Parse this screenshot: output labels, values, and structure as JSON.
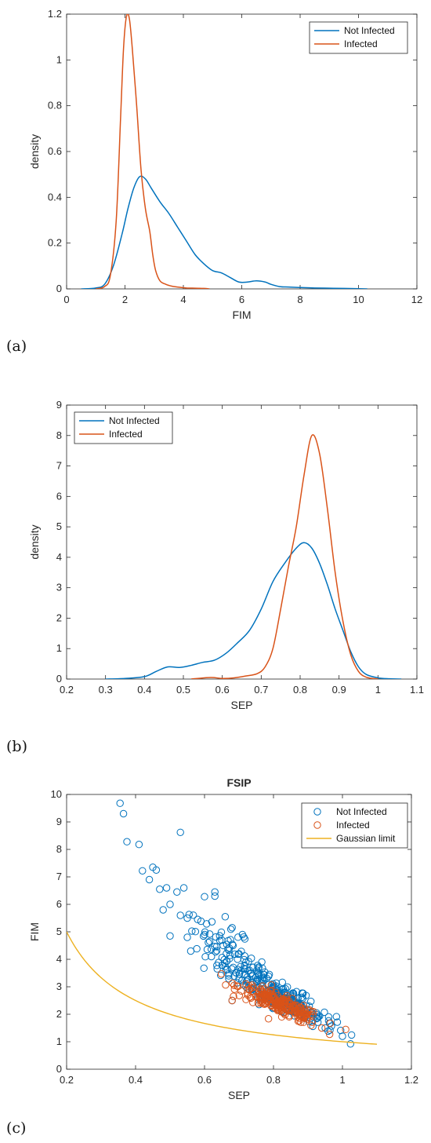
{
  "panel_labels": [
    "(a)",
    "(b)",
    "(c)"
  ],
  "chart_data": [
    {
      "type": "line",
      "title": "",
      "xlabel": "FIM",
      "ylabel": "density",
      "xlim": [
        0,
        12
      ],
      "ylim": [
        0,
        1.2
      ],
      "xticks": [
        0,
        2,
        4,
        6,
        8,
        10,
        12
      ],
      "yticks": [
        0,
        0.2,
        0.4,
        0.6,
        0.8,
        1,
        1.2
      ],
      "xtick_labels": [
        "0",
        "2",
        "4",
        "6",
        "8",
        "10",
        "12"
      ],
      "ytick_labels": [
        "0",
        "0.2",
        "0.4",
        "0.6",
        "0.8",
        "1",
        "1.2"
      ],
      "legend_position": "top-right",
      "series": [
        {
          "name": "Not Infected",
          "color": "#0072BD",
          "x": [
            0.5,
            1.0,
            1.3,
            1.6,
            1.9,
            2.1,
            2.3,
            2.5,
            2.7,
            2.9,
            3.2,
            3.5,
            3.8,
            4.1,
            4.4,
            4.7,
            5.0,
            5.3,
            5.6,
            5.9,
            6.2,
            6.5,
            6.8,
            7.0,
            7.3,
            7.6,
            8.0,
            8.5,
            9.0,
            9.5,
            10.3
          ],
          "y": [
            0,
            0.004,
            0.02,
            0.1,
            0.24,
            0.35,
            0.44,
            0.49,
            0.48,
            0.44,
            0.38,
            0.33,
            0.27,
            0.21,
            0.15,
            0.11,
            0.08,
            0.07,
            0.05,
            0.03,
            0.03,
            0.035,
            0.03,
            0.02,
            0.01,
            0.008,
            0.006,
            0.004,
            0.003,
            0.002,
            0
          ]
        },
        {
          "name": "Infected",
          "color": "#D95319",
          "x": [
            1.0,
            1.3,
            1.5,
            1.7,
            1.85,
            1.95,
            2.05,
            2.15,
            2.25,
            2.4,
            2.55,
            2.7,
            2.85,
            2.95,
            3.05,
            3.2,
            3.4,
            3.6,
            3.8,
            4.1,
            4.4,
            4.7,
            4.9
          ],
          "y": [
            0,
            0.01,
            0.06,
            0.3,
            0.75,
            1.05,
            1.19,
            1.18,
            1.05,
            0.8,
            0.52,
            0.35,
            0.25,
            0.15,
            0.08,
            0.035,
            0.02,
            0.012,
            0.008,
            0.004,
            0.003,
            0.002,
            0
          ]
        }
      ]
    },
    {
      "type": "line",
      "title": "",
      "xlabel": "SEP",
      "ylabel": "density",
      "xlim": [
        0.2,
        1.1
      ],
      "ylim": [
        0,
        9
      ],
      "xticks": [
        0.2,
        0.3,
        0.4,
        0.5,
        0.6,
        0.7,
        0.8,
        0.9,
        1,
        1.1
      ],
      "yticks": [
        0,
        1,
        2,
        3,
        4,
        5,
        6,
        7,
        8,
        9
      ],
      "xtick_labels": [
        "0.2",
        "0.3",
        "0.4",
        "0.5",
        "0.6",
        "0.7",
        "0.8",
        "0.9",
        "1",
        "1.1"
      ],
      "ytick_labels": [
        "0",
        "1",
        "2",
        "3",
        "4",
        "5",
        "6",
        "7",
        "8",
        "9"
      ],
      "legend_position": "top-left",
      "series": [
        {
          "name": "Not Infected",
          "color": "#0072BD",
          "x": [
            0.3,
            0.35,
            0.4,
            0.43,
            0.46,
            0.49,
            0.52,
            0.55,
            0.58,
            0.61,
            0.64,
            0.67,
            0.7,
            0.73,
            0.76,
            0.79,
            0.81,
            0.83,
            0.85,
            0.87,
            0.89,
            0.91,
            0.93,
            0.95,
            0.97,
            1.0,
            1.03,
            1.06
          ],
          "y": [
            0,
            0.02,
            0.08,
            0.25,
            0.4,
            0.38,
            0.45,
            0.55,
            0.62,
            0.85,
            1.2,
            1.6,
            2.3,
            3.2,
            3.8,
            4.3,
            4.48,
            4.3,
            3.8,
            3.1,
            2.3,
            1.6,
            0.9,
            0.4,
            0.15,
            0.04,
            0.01,
            0
          ]
        },
        {
          "name": "Infected",
          "color": "#D95319",
          "x": [
            0.52,
            0.57,
            0.6,
            0.63,
            0.66,
            0.69,
            0.71,
            0.73,
            0.75,
            0.77,
            0.79,
            0.81,
            0.83,
            0.85,
            0.87,
            0.89,
            0.91,
            0.93,
            0.95,
            0.97,
            1.0
          ],
          "y": [
            0,
            0.05,
            0.02,
            0.04,
            0.1,
            0.18,
            0.4,
            1.0,
            2.3,
            3.7,
            5.0,
            6.7,
            8.0,
            7.4,
            5.6,
            3.5,
            1.9,
            0.8,
            0.25,
            0.06,
            0
          ]
        }
      ]
    },
    {
      "type": "scatter",
      "title": "FSIP",
      "xlabel": "SEP",
      "ylabel": "FIM",
      "xlim": [
        0.2,
        1.2
      ],
      "ylim": [
        0,
        10
      ],
      "xticks": [
        0.2,
        0.4,
        0.6,
        0.8,
        1,
        1.2
      ],
      "yticks": [
        0,
        1,
        2,
        3,
        4,
        5,
        6,
        7,
        8,
        9,
        10
      ],
      "xtick_labels": [
        "0.2",
        "0.4",
        "0.6",
        "0.8",
        "1",
        "1.2"
      ],
      "ytick_labels": [
        "0",
        "1",
        "2",
        "3",
        "4",
        "5",
        "6",
        "7",
        "8",
        "9",
        "10"
      ],
      "legend_position": "top-right",
      "series": [
        {
          "name": "Not Infected",
          "color": "#0072BD",
          "marker": "circle",
          "points": [
            [
              0.355,
              9.68
            ],
            [
              0.365,
              9.3
            ],
            [
              0.375,
              8.28
            ],
            [
              0.41,
              8.18
            ],
            [
              0.53,
              8.62
            ],
            [
              0.42,
              7.22
            ],
            [
              0.45,
              7.35
            ],
            [
              0.46,
              7.25
            ],
            [
              0.44,
              6.9
            ],
            [
              0.47,
              6.55
            ],
            [
              0.49,
              6.6
            ],
            [
              0.5,
              6.0
            ],
            [
              0.52,
              6.45
            ],
            [
              0.54,
              6.6
            ],
            [
              0.63,
              6.45
            ],
            [
              0.63,
              6.3
            ],
            [
              0.6,
              6.28
            ],
            [
              0.48,
              5.8
            ],
            [
              0.53,
              5.6
            ],
            [
              0.55,
              5.5
            ],
            [
              0.58,
              5.45
            ],
            [
              0.66,
              5.55
            ],
            [
              0.68,
              5.15
            ],
            [
              0.5,
              4.85
            ],
            [
              0.55,
              4.8
            ],
            [
              0.6,
              4.9
            ],
            [
              0.65,
              4.7
            ],
            [
              0.71,
              4.9
            ],
            [
              0.56,
              4.3
            ],
            [
              0.62,
              4.1
            ],
            [
              0.7,
              4.2
            ],
            [
              0.67,
              3.4
            ],
            [
              0.68,
              2.5
            ],
            [
              0.72,
              3.0
            ],
            [
              0.75,
              3.2
            ],
            [
              0.8,
              3.0
            ],
            [
              0.95,
              1.5
            ],
            [
              1.0,
              1.2
            ]
          ],
          "cloud": [
            {
              "center": [
                0.78,
                3.0
              ],
              "spread": [
                0.07,
                0.6
              ],
              "slope": -6.5,
              "count": 140
            },
            {
              "center": [
                0.86,
                2.3
              ],
              "spread": [
                0.06,
                0.4
              ],
              "slope": -6.0,
              "count": 120
            },
            {
              "center": [
                0.66,
                4.4
              ],
              "spread": [
                0.06,
                0.7
              ],
              "slope": -7.5,
              "count": 60
            }
          ]
        },
        {
          "name": "Infected",
          "color": "#D95319",
          "marker": "circle",
          "points": [
            [
              0.68,
              2.5
            ],
            [
              0.72,
              3.1
            ],
            [
              0.73,
              2.9
            ],
            [
              0.94,
              1.5
            ]
          ],
          "cloud": [
            {
              "center": [
                0.82,
                2.35
              ],
              "spread": [
                0.06,
                0.35
              ],
              "slope": -5.5,
              "count": 220
            }
          ]
        },
        {
          "name": "Gaussian limit",
          "color": "#EDB120",
          "line": true,
          "formula": "1/x",
          "x_range": [
            0.2,
            1.1
          ]
        }
      ]
    }
  ]
}
